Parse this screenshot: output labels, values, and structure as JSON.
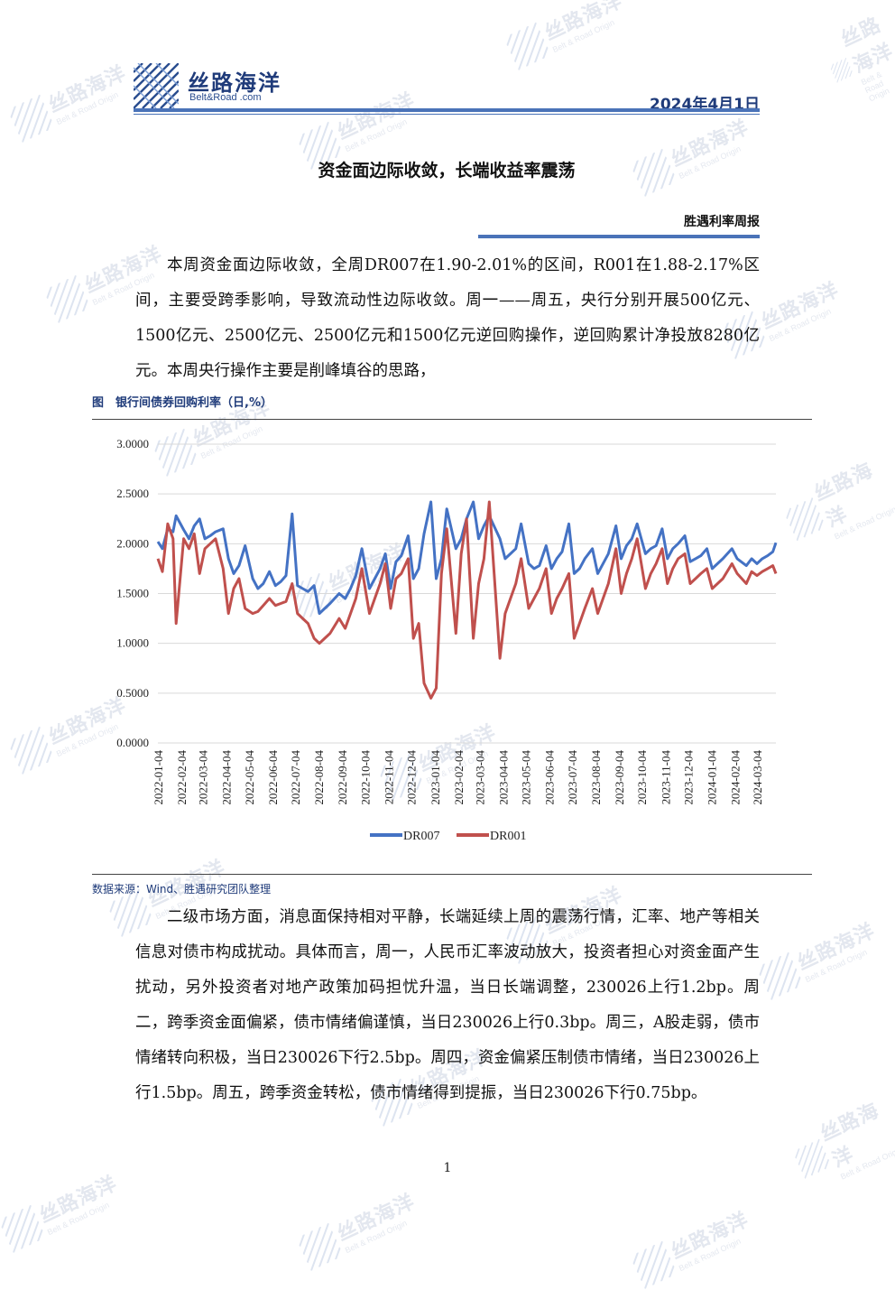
{
  "header": {
    "logo_cn": "丝路海洋",
    "logo_en": "Belt&Road .com",
    "date": "2024年4月1日"
  },
  "watermark": {
    "cn": "丝路海洋",
    "en": "Belt & Road Origin"
  },
  "title": "资金面边际收敛，长端收益率震荡",
  "series_name": "胜遇利率周报",
  "paragraph1": "本周资金面边际收敛，全周DR007在1.90-2.01%的区间，R001在1.88-2.17%区间，主要受跨季影响，导致流动性边际收敛。周一——周五，央行分别开展500亿元、1500亿元、2500亿元、2500亿元和1500亿元逆回购操作，逆回购累计净投放8280亿元。本周央行操作主要是削峰填谷的思路，",
  "figure": {
    "caption": "图　银行间债券回购利率（日,%）",
    "source": "数据来源：Wind、胜遇研究团队整理"
  },
  "chart_data": {
    "type": "line",
    "title": "",
    "xlabel": "",
    "ylabel": "",
    "ylim": [
      0,
      3
    ],
    "y_ticks": [
      "3.0000",
      "2.5000",
      "2.0000",
      "1.5000",
      "1.0000",
      "0.5000",
      "0.0000"
    ],
    "x_tick_labels": [
      "2022-01-04",
      "2022-02-04",
      "2022-03-04",
      "2022-04-04",
      "2022-05-04",
      "2022-06-04",
      "2022-07-04",
      "2022-08-04",
      "2022-09-04",
      "2022-10-04",
      "2022-11-04",
      "2022-12-04",
      "2023-01-04",
      "2023-02-04",
      "2023-03-04",
      "2023-04-04",
      "2023-05-04",
      "2023-06-04",
      "2023-07-04",
      "2023-08-04",
      "2023-09-04",
      "2023-10-04",
      "2023-11-04",
      "2023-12-04",
      "2024-01-04",
      "2024-02-04",
      "2024-03-04"
    ],
    "grid": "horizontal",
    "legend": "bottom",
    "x_start": "2022-01-04",
    "x_end": "2024-03-29",
    "series": [
      {
        "name": "DR007",
        "color": "#4472c4",
        "points": [
          [
            "2022-01-04",
            2.02
          ],
          [
            "2022-01-10",
            1.95
          ],
          [
            "2022-01-17",
            2.15
          ],
          [
            "2022-01-24",
            2.12
          ],
          [
            "2022-01-28",
            2.28
          ],
          [
            "2022-02-07",
            2.14
          ],
          [
            "2022-02-14",
            2.05
          ],
          [
            "2022-02-21",
            2.18
          ],
          [
            "2022-02-28",
            2.25
          ],
          [
            "2022-03-07",
            2.05
          ],
          [
            "2022-03-14",
            2.08
          ],
          [
            "2022-03-21",
            2.12
          ],
          [
            "2022-03-31",
            2.15
          ],
          [
            "2022-04-07",
            1.85
          ],
          [
            "2022-04-14",
            1.7
          ],
          [
            "2022-04-21",
            1.78
          ],
          [
            "2022-04-29",
            1.98
          ],
          [
            "2022-05-09",
            1.65
          ],
          [
            "2022-05-16",
            1.55
          ],
          [
            "2022-05-23",
            1.6
          ],
          [
            "2022-05-31",
            1.72
          ],
          [
            "2022-06-08",
            1.58
          ],
          [
            "2022-06-15",
            1.62
          ],
          [
            "2022-06-22",
            1.68
          ],
          [
            "2022-06-30",
            2.3
          ],
          [
            "2022-07-07",
            1.58
          ],
          [
            "2022-07-14",
            1.55
          ],
          [
            "2022-07-21",
            1.52
          ],
          [
            "2022-07-29",
            1.58
          ],
          [
            "2022-08-05",
            1.3
          ],
          [
            "2022-08-12",
            1.35
          ],
          [
            "2022-08-19",
            1.4
          ],
          [
            "2022-08-31",
            1.5
          ],
          [
            "2022-09-08",
            1.45
          ],
          [
            "2022-09-15",
            1.55
          ],
          [
            "2022-09-22",
            1.68
          ],
          [
            "2022-09-30",
            1.95
          ],
          [
            "2022-10-10",
            1.55
          ],
          [
            "2022-10-17",
            1.65
          ],
          [
            "2022-10-24",
            1.75
          ],
          [
            "2022-10-31",
            1.9
          ],
          [
            "2022-11-07",
            1.55
          ],
          [
            "2022-11-14",
            1.82
          ],
          [
            "2022-11-21",
            1.88
          ],
          [
            "2022-11-30",
            2.08
          ],
          [
            "2022-12-07",
            1.65
          ],
          [
            "2022-12-14",
            1.75
          ],
          [
            "2022-12-21",
            2.1
          ],
          [
            "2022-12-30",
            2.42
          ],
          [
            "2023-01-06",
            1.65
          ],
          [
            "2023-01-13",
            1.85
          ],
          [
            "2023-01-20",
            2.35
          ],
          [
            "2023-02-01",
            1.95
          ],
          [
            "2023-02-08",
            2.05
          ],
          [
            "2023-02-15",
            2.25
          ],
          [
            "2023-02-24",
            2.42
          ],
          [
            "2023-03-03",
            2.05
          ],
          [
            "2023-03-10",
            2.18
          ],
          [
            "2023-03-17",
            2.28
          ],
          [
            "2023-03-31",
            2.05
          ],
          [
            "2023-04-07",
            1.85
          ],
          [
            "2023-04-14",
            1.9
          ],
          [
            "2023-04-21",
            1.95
          ],
          [
            "2023-04-28",
            2.2
          ],
          [
            "2023-05-08",
            1.8
          ],
          [
            "2023-05-15",
            1.75
          ],
          [
            "2023-05-22",
            1.78
          ],
          [
            "2023-05-31",
            1.98
          ],
          [
            "2023-06-07",
            1.75
          ],
          [
            "2023-06-14",
            1.85
          ],
          [
            "2023-06-21",
            1.92
          ],
          [
            "2023-06-30",
            2.2
          ],
          [
            "2023-07-07",
            1.7
          ],
          [
            "2023-07-14",
            1.75
          ],
          [
            "2023-07-21",
            1.85
          ],
          [
            "2023-07-31",
            1.95
          ],
          [
            "2023-08-07",
            1.7
          ],
          [
            "2023-08-14",
            1.8
          ],
          [
            "2023-08-21",
            1.9
          ],
          [
            "2023-08-31",
            2.18
          ],
          [
            "2023-09-07",
            1.85
          ],
          [
            "2023-09-14",
            1.98
          ],
          [
            "2023-09-21",
            2.05
          ],
          [
            "2023-09-28",
            2.2
          ],
          [
            "2023-10-09",
            1.9
          ],
          [
            "2023-10-16",
            1.95
          ],
          [
            "2023-10-23",
            1.98
          ],
          [
            "2023-10-31",
            2.15
          ],
          [
            "2023-11-07",
            1.85
          ],
          [
            "2023-11-14",
            1.95
          ],
          [
            "2023-11-21",
            2.0
          ],
          [
            "2023-11-30",
            2.08
          ],
          [
            "2023-12-07",
            1.82
          ],
          [
            "2023-12-14",
            1.85
          ],
          [
            "2023-12-21",
            1.88
          ],
          [
            "2023-12-29",
            1.95
          ],
          [
            "2024-01-05",
            1.75
          ],
          [
            "2024-01-12",
            1.8
          ],
          [
            "2024-01-19",
            1.85
          ],
          [
            "2024-01-31",
            1.95
          ],
          [
            "2024-02-07",
            1.85
          ],
          [
            "2024-02-19",
            1.78
          ],
          [
            "2024-02-26",
            1.85
          ],
          [
            "2024-03-04",
            1.8
          ],
          [
            "2024-03-11",
            1.85
          ],
          [
            "2024-03-18",
            1.88
          ],
          [
            "2024-03-25",
            1.92
          ],
          [
            "2024-03-29",
            2.01
          ]
        ]
      },
      {
        "name": "DR001",
        "color": "#c0504d",
        "points": [
          [
            "2022-01-04",
            1.85
          ],
          [
            "2022-01-10",
            1.72
          ],
          [
            "2022-01-17",
            2.2
          ],
          [
            "2022-01-24",
            2.05
          ],
          [
            "2022-01-28",
            1.2
          ],
          [
            "2022-02-07",
            2.05
          ],
          [
            "2022-02-14",
            1.95
          ],
          [
            "2022-02-21",
            2.1
          ],
          [
            "2022-02-28",
            1.7
          ],
          [
            "2022-03-07",
            1.95
          ],
          [
            "2022-03-14",
            2.0
          ],
          [
            "2022-03-21",
            2.05
          ],
          [
            "2022-03-31",
            1.75
          ],
          [
            "2022-04-07",
            1.3
          ],
          [
            "2022-04-14",
            1.55
          ],
          [
            "2022-04-21",
            1.65
          ],
          [
            "2022-04-29",
            1.35
          ],
          [
            "2022-05-09",
            1.3
          ],
          [
            "2022-05-16",
            1.32
          ],
          [
            "2022-05-23",
            1.38
          ],
          [
            "2022-05-31",
            1.45
          ],
          [
            "2022-06-08",
            1.38
          ],
          [
            "2022-06-15",
            1.4
          ],
          [
            "2022-06-22",
            1.42
          ],
          [
            "2022-06-30",
            1.6
          ],
          [
            "2022-07-07",
            1.3
          ],
          [
            "2022-07-14",
            1.25
          ],
          [
            "2022-07-21",
            1.2
          ],
          [
            "2022-07-29",
            1.05
          ],
          [
            "2022-08-05",
            1.0
          ],
          [
            "2022-08-12",
            1.05
          ],
          [
            "2022-08-19",
            1.1
          ],
          [
            "2022-08-31",
            1.25
          ],
          [
            "2022-09-08",
            1.15
          ],
          [
            "2022-09-15",
            1.3
          ],
          [
            "2022-09-22",
            1.45
          ],
          [
            "2022-09-30",
            1.75
          ],
          [
            "2022-10-10",
            1.3
          ],
          [
            "2022-10-17",
            1.45
          ],
          [
            "2022-10-24",
            1.6
          ],
          [
            "2022-10-31",
            1.8
          ],
          [
            "2022-11-07",
            1.35
          ],
          [
            "2022-11-14",
            1.65
          ],
          [
            "2022-11-21",
            1.7
          ],
          [
            "2022-11-30",
            1.85
          ],
          [
            "2022-12-07",
            1.05
          ],
          [
            "2022-12-14",
            1.2
          ],
          [
            "2022-12-21",
            0.6
          ],
          [
            "2022-12-30",
            0.45
          ],
          [
            "2023-01-06",
            0.55
          ],
          [
            "2023-01-13",
            1.7
          ],
          [
            "2023-01-20",
            2.15
          ],
          [
            "2023-02-01",
            1.1
          ],
          [
            "2023-02-08",
            1.9
          ],
          [
            "2023-02-15",
            2.25
          ],
          [
            "2023-02-24",
            1.05
          ],
          [
            "2023-03-03",
            1.6
          ],
          [
            "2023-03-10",
            1.85
          ],
          [
            "2023-03-17",
            2.42
          ],
          [
            "2023-03-31",
            0.85
          ],
          [
            "2023-04-07",
            1.3
          ],
          [
            "2023-04-14",
            1.45
          ],
          [
            "2023-04-21",
            1.6
          ],
          [
            "2023-04-28",
            1.85
          ],
          [
            "2023-05-08",
            1.35
          ],
          [
            "2023-05-15",
            1.45
          ],
          [
            "2023-05-22",
            1.55
          ],
          [
            "2023-05-31",
            1.75
          ],
          [
            "2023-06-07",
            1.3
          ],
          [
            "2023-06-14",
            1.45
          ],
          [
            "2023-06-21",
            1.55
          ],
          [
            "2023-06-30",
            1.7
          ],
          [
            "2023-07-07",
            1.05
          ],
          [
            "2023-07-14",
            1.2
          ],
          [
            "2023-07-21",
            1.35
          ],
          [
            "2023-07-31",
            1.55
          ],
          [
            "2023-08-07",
            1.3
          ],
          [
            "2023-08-14",
            1.45
          ],
          [
            "2023-08-21",
            1.6
          ],
          [
            "2023-08-31",
            1.95
          ],
          [
            "2023-09-07",
            1.5
          ],
          [
            "2023-09-14",
            1.7
          ],
          [
            "2023-09-21",
            1.85
          ],
          [
            "2023-09-28",
            2.05
          ],
          [
            "2023-10-09",
            1.55
          ],
          [
            "2023-10-16",
            1.7
          ],
          [
            "2023-10-23",
            1.8
          ],
          [
            "2023-10-31",
            1.95
          ],
          [
            "2023-11-07",
            1.6
          ],
          [
            "2023-11-14",
            1.75
          ],
          [
            "2023-11-21",
            1.85
          ],
          [
            "2023-11-30",
            1.9
          ],
          [
            "2023-12-07",
            1.6
          ],
          [
            "2023-12-14",
            1.65
          ],
          [
            "2023-12-21",
            1.7
          ],
          [
            "2023-12-29",
            1.75
          ],
          [
            "2024-01-05",
            1.55
          ],
          [
            "2024-01-12",
            1.6
          ],
          [
            "2024-01-19",
            1.65
          ],
          [
            "2024-01-31",
            1.8
          ],
          [
            "2024-02-07",
            1.7
          ],
          [
            "2024-02-19",
            1.6
          ],
          [
            "2024-02-26",
            1.72
          ],
          [
            "2024-03-04",
            1.68
          ],
          [
            "2024-03-11",
            1.72
          ],
          [
            "2024-03-18",
            1.75
          ],
          [
            "2024-03-25",
            1.78
          ],
          [
            "2024-03-29",
            1.7
          ]
        ]
      }
    ]
  },
  "paragraph2": "二级市场方面，消息面保持相对平静，长端延续上周的震荡行情，汇率、地产等相关信息对债市构成扰动。具体而言，周一，人民币汇率波动放大，投资者担心对资金面产生扰动，另外投资者对地产政策加码担忧升温，当日长端调整，230026上行1.2bp。周二，跨季资金面偏紧，债市情绪偏谨慎，当日230026上行0.3bp。周三，A股走弱，债市情绪转向积极，当日230026下行2.5bp。周四，资金偏紧压制债市情绪，当日230026上行1.5bp。周五，跨季资金转松，债市情绪得到提振，当日230026下行0.75bp。",
  "page_number": "1"
}
